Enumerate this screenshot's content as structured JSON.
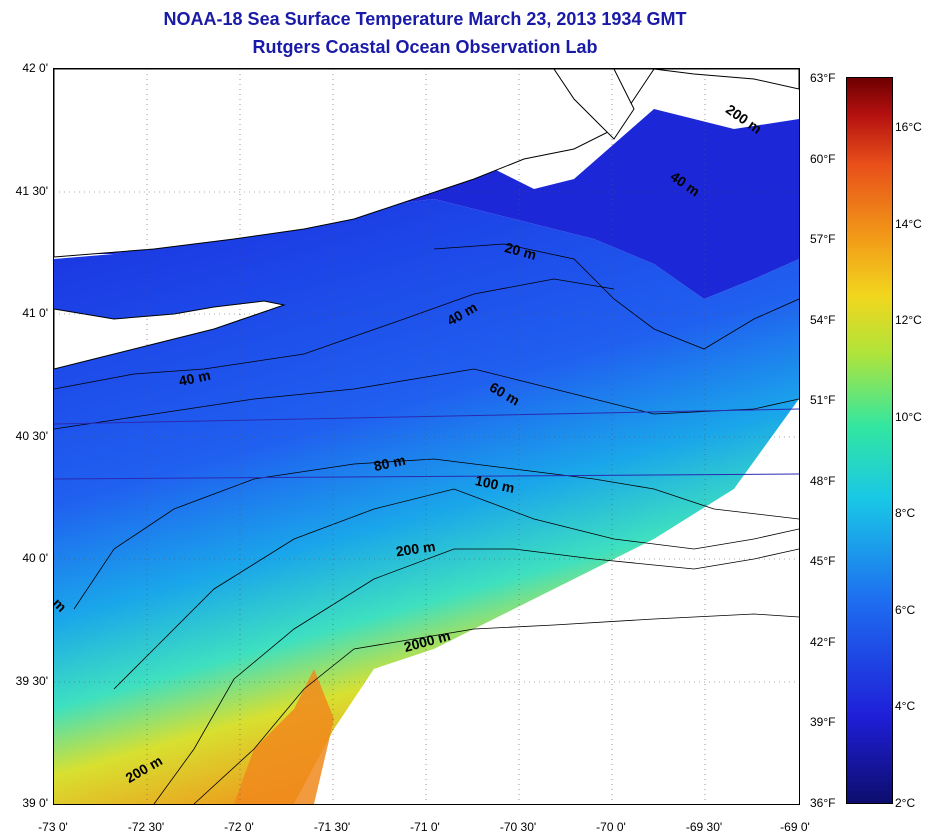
{
  "title": {
    "line1": "NOAA-18 Sea Surface Temperature March 23, 2013 1934 GMT",
    "line2": "Rutgers Coastal Ocean Observation Lab"
  },
  "map": {
    "latitude_labels": [
      "42 0'",
      "41 30'",
      "41 0'",
      "40 30'",
      "40 0'",
      "39 30'",
      "39 0'"
    ],
    "longitude_labels": [
      "-73 0'",
      "-72 30'",
      "-72 0'",
      "-71 30'",
      "-71 0'",
      "-70 30'",
      "-70 0'",
      "-69 30'",
      "-69 0'"
    ],
    "contour_labels": [
      "200 m",
      "40 m",
      "20 m",
      "40 m",
      "40 m",
      "60 m",
      "80 m",
      "100 m",
      "200 m",
      "2000 m",
      "200 m",
      "m"
    ]
  },
  "colorbar": {
    "fahrenheit_labels": [
      "63°F",
      "60°F",
      "57°F",
      "54°F",
      "51°F",
      "48°F",
      "45°F",
      "42°F",
      "39°F",
      "36°F"
    ],
    "celsius_labels": [
      "16°C",
      "14°C",
      "12°C",
      "10°C",
      "8°C",
      "6°C",
      "4°C",
      "2°C"
    ]
  },
  "colors": {
    "title": "#1a1aa8",
    "cold": "#1f1fd8",
    "warm": "#f29a18",
    "land": "#ffffff"
  }
}
